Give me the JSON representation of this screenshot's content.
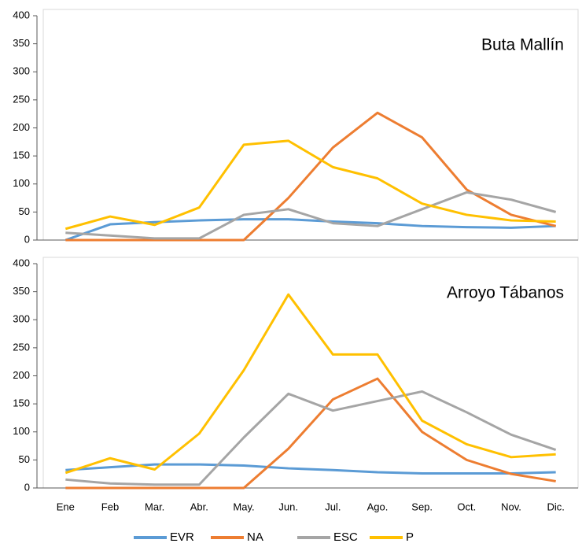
{
  "chart_data": [
    {
      "type": "line",
      "title": "Buta Mallín",
      "categories": [
        null,
        null,
        null,
        null,
        null,
        null,
        null,
        null,
        null,
        null,
        null,
        null
      ],
      "series": [
        {
          "name": "EVR",
          "color": "#5b9bd5",
          "values": [
            0,
            28,
            32,
            35,
            37,
            37,
            33,
            30,
            25,
            23,
            22,
            25
          ]
        },
        {
          "name": "NA",
          "color": "#ed7d31",
          "values": [
            0,
            0,
            0,
            0,
            0,
            75,
            165,
            227,
            183,
            90,
            45,
            25
          ]
        },
        {
          "name": "ESC",
          "color": "#a5a5a5",
          "values": [
            13,
            8,
            3,
            3,
            45,
            55,
            30,
            25,
            55,
            85,
            72,
            50
          ]
        },
        {
          "name": "P",
          "color": "#ffc000",
          "values": [
            20,
            42,
            27,
            58,
            170,
            177,
            130,
            110,
            65,
            45,
            35,
            33
          ]
        }
      ],
      "ylim": [
        0,
        400
      ],
      "yticks": [
        0,
        50,
        100,
        150,
        200,
        250,
        300,
        350,
        400
      ]
    },
    {
      "type": "line",
      "title": "Arroyo Tábanos",
      "categories": [
        "Ene",
        "Feb",
        "Mar.",
        "Abr.",
        "May.",
        "Jun.",
        "Jul.",
        "Ago.",
        "Sep.",
        "Oct.",
        "Nov.",
        "Dic."
      ],
      "series": [
        {
          "name": "EVR",
          "color": "#5b9bd5",
          "values": [
            32,
            37,
            42,
            42,
            40,
            35,
            32,
            28,
            26,
            26,
            26,
            28
          ]
        },
        {
          "name": "NA",
          "color": "#ed7d31",
          "values": [
            0,
            0,
            0,
            0,
            0,
            70,
            158,
            195,
            100,
            50,
            25,
            12
          ]
        },
        {
          "name": "ESC",
          "color": "#a5a5a5",
          "values": [
            15,
            8,
            6,
            6,
            90,
            168,
            138,
            155,
            172,
            135,
            95,
            68
          ]
        },
        {
          "name": "P",
          "color": "#ffc000",
          "values": [
            27,
            53,
            33,
            97,
            210,
            345,
            238,
            238,
            120,
            78,
            55,
            60
          ]
        }
      ],
      "ylim": [
        0,
        400
      ],
      "yticks": [
        0,
        50,
        100,
        150,
        200,
        250,
        300,
        350,
        400
      ]
    }
  ]
}
